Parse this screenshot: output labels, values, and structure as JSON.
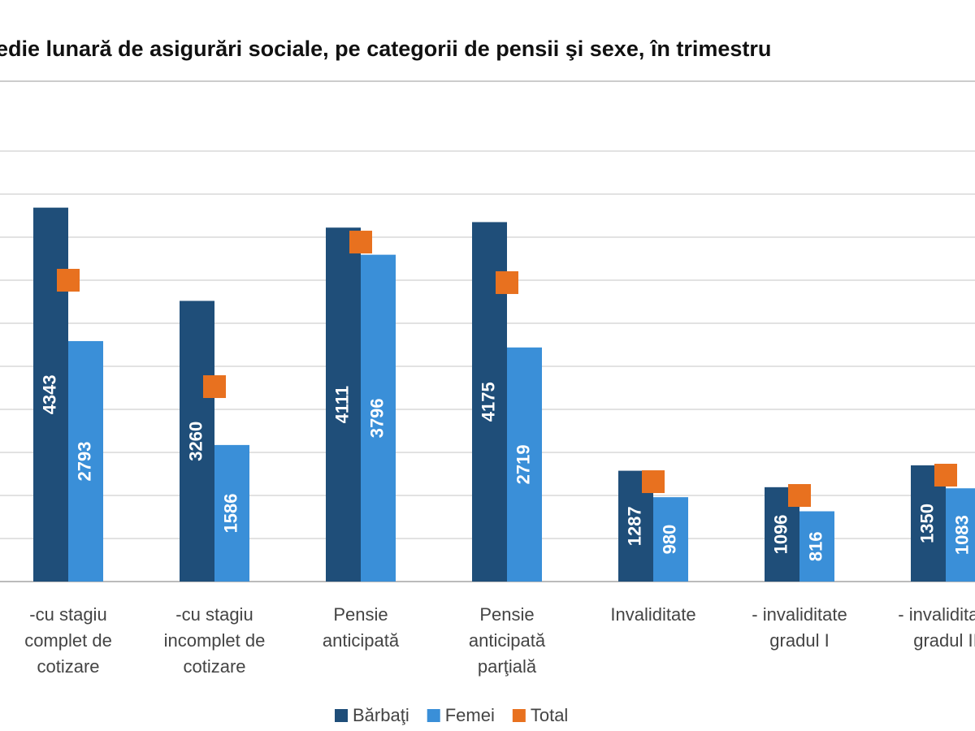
{
  "chart_data": {
    "type": "bar",
    "title": "edie lunară de asigurări sociale, pe categorii de pensii şi sexe, în trimestru",
    "categories": [
      "-cu stagiu\ncomplet de\ncotizare",
      "-cu stagiu\nincomplet de\ncotizare",
      "Pensie\nanticipată",
      "Pensie\nanticipată\nparţială",
      "Invaliditate",
      "- invaliditate\ngradul I",
      "- invaliditate\ngradul II"
    ],
    "series": [
      {
        "name": "Bărbaţi",
        "color": "#1f4e79",
        "values": [
          4343,
          3260,
          4111,
          4175,
          1287,
          1096,
          1350
        ]
      },
      {
        "name": "Femei",
        "color": "#3a8fd8",
        "values": [
          2793,
          1586,
          3796,
          2719,
          980,
          816,
          1083
        ]
      },
      {
        "name": "Total",
        "color": "#e8711f",
        "marker": "square",
        "values": [
          3500,
          2264,
          3943,
          3472,
          1160,
          1000,
          1236
        ]
      }
    ],
    "ylim": [
      0,
      5000
    ],
    "yticks": [
      0,
      500,
      1000,
      1500,
      2000,
      2500,
      3000,
      3500,
      4000,
      4500,
      5000
    ],
    "grid": true
  }
}
